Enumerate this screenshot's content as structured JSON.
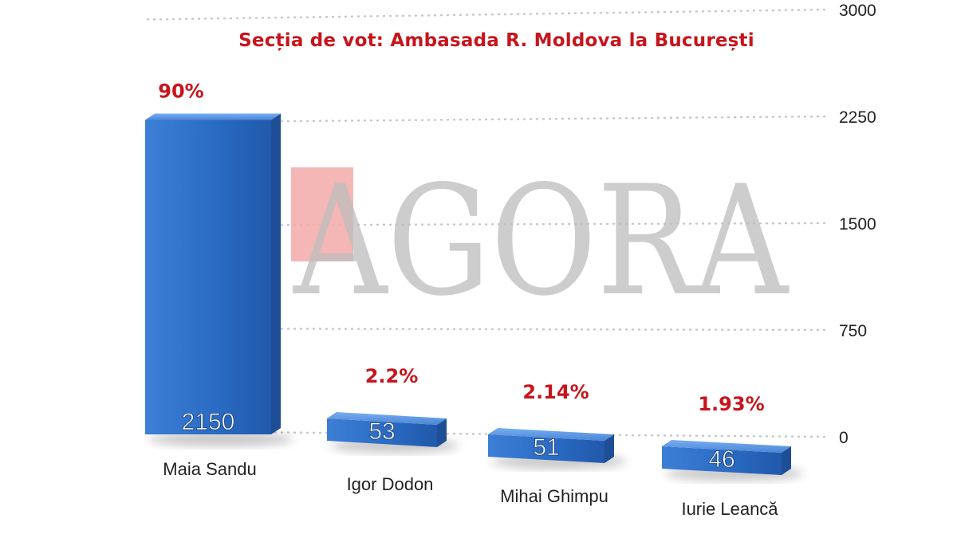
{
  "chart_data": {
    "type": "bar",
    "title": "",
    "subtitle": "Secția de vot: Ambasada R. Moldova la București",
    "categories": [
      "Maia Sandu",
      "Igor Dodon",
      "Mihai Ghimpu",
      "Iurie Leancă"
    ],
    "values": [
      2150,
      53,
      51,
      46
    ],
    "value_labels": [
      "2150",
      "53",
      "51",
      "46"
    ],
    "percent_labels": [
      "90%",
      "2.2%",
      "2.14%",
      "1.93%"
    ],
    "y_ticks": [
      "0",
      "750",
      "1500",
      "2250",
      "3000"
    ],
    "y_tick_values": [
      0,
      750,
      1500,
      2250,
      3000
    ],
    "ylim": [
      0,
      3000
    ],
    "xlabel": "",
    "ylabel": "",
    "grid": true,
    "legend": "none",
    "colors": {
      "bar": "#2a6bc4",
      "bar_top": "#5d97e0",
      "bar_side": "#1e4f96",
      "percent": "#c8141c",
      "grid": "#c8c8c8",
      "axis_text": "#222222",
      "watermark_gray": "#bdbdbd",
      "watermark_red": "#f3a9a9"
    }
  },
  "watermark": {
    "text": "AGORA"
  }
}
